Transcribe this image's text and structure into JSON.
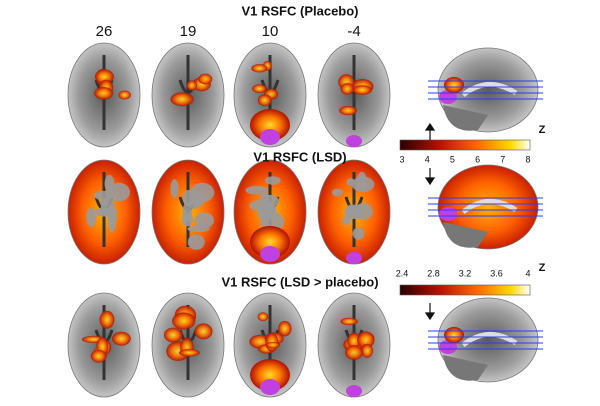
{
  "slice_labels": [
    "26",
    "19",
    "10",
    "-4"
  ],
  "panels": [
    {
      "title": "V1 RSFC (Placebo)"
    },
    {
      "title": "V1 RSFC (LSD)"
    },
    {
      "title": "V1 RSFC (LSD > placebo)"
    }
  ],
  "colorbars": [
    {
      "label": "Z",
      "ticks": [
        "3",
        "4",
        "5",
        "6",
        "7",
        "8"
      ]
    },
    {
      "label": "Z",
      "ticks": [
        "2.4",
        "2.8",
        "3.2",
        "3.6",
        "4"
      ]
    }
  ]
}
